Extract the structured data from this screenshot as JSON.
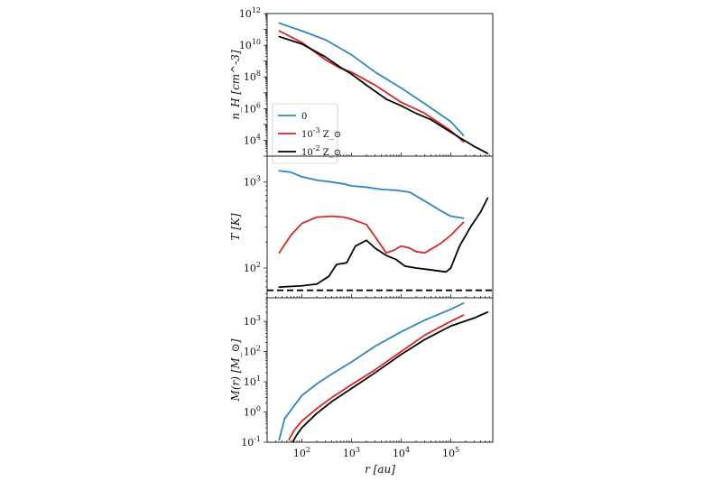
{
  "chart_data": {
    "type": "line",
    "shared_x": {
      "label": "r [au]",
      "scale": "log",
      "lim": [
        20,
        700000
      ],
      "tick_labels": [
        "10^2",
        "10^3",
        "10^4",
        "10^5"
      ]
    },
    "panels": [
      {
        "ylabel": "n_H [cm^-3]",
        "yscale": "log",
        "ylim": [
          1000,
          1000000000000
        ],
        "ytick_labels": [
          "10^4",
          "10^6",
          "10^8",
          "10^10",
          "10^12"
        ],
        "legend": {
          "placement": "lower-left",
          "entries": [
            "0",
            "10^-3 Z_⊙",
            "10^-2 Z_⊙"
          ]
        },
        "series": [
          {
            "name": "0",
            "color": "#2e86c1",
            "x": [
              35,
              100,
              300,
              1000,
              3000,
              10000,
              30000,
              100000,
              180000
            ],
            "y": [
              250000000000,
              80000000000,
              22000000000,
              2500000000,
              200000000,
              20000000,
              2000000,
              150000,
              20000
            ]
          },
          {
            "name": "10^-3 Z_⊙",
            "color": "#d62728",
            "x": [
              35,
              100,
              300,
              600,
              1000,
              3000,
              10000,
              30000,
              100000,
              180000
            ],
            "y": [
              80000000000,
              15000000000,
              1200000000,
              350000000,
              200000000,
              30000000,
              2500000,
              500000,
              40000,
              8000
            ]
          },
          {
            "name": "10^-2 Z_⊙",
            "color": "#000000",
            "x": [
              35,
              100,
              300,
              600,
              1000,
              2000,
              5000,
              10000,
              20000,
              40000,
              80000,
              150000,
              300000,
              550000
            ],
            "y": [
              35000000000,
              12000000000,
              1800000000,
              400000000,
              150000000,
              30000000,
              4000000,
              1500000,
              500000,
              200000,
              50000,
              15000,
              4000,
              1500
            ]
          }
        ]
      },
      {
        "ylabel": "T [K]",
        "yscale": "log",
        "ylim": [
          45,
          2000
        ],
        "ytick_labels": [
          "10^2",
          "10^3"
        ],
        "hline": {
          "value": 55,
          "style": "dashed",
          "color": "#000000"
        },
        "series": [
          {
            "name": "0",
            "color": "#2e86c1",
            "x": [
              35,
              60,
              100,
              200,
              400,
              700,
              1000,
              2000,
              4000,
              8000,
              15000,
              30000,
              60000,
              100000,
              180000
            ],
            "y": [
              1350,
              1300,
              1150,
              1050,
              1000,
              950,
              900,
              870,
              820,
              800,
              760,
              600,
              470,
              400,
              380
            ]
          },
          {
            "name": "10^-3 Z_⊙",
            "color": "#d62728",
            "x": [
              35,
              60,
              100,
              200,
              400,
              700,
              1000,
              2000,
              3000,
              5000,
              7000,
              10000,
              15000,
              20000,
              30000,
              60000,
              100000,
              180000
            ],
            "y": [
              150,
              240,
              330,
              390,
              400,
              390,
              370,
              320,
              230,
              150,
              160,
              180,
              170,
              155,
              150,
              190,
              240,
              340
            ]
          },
          {
            "name": "10^-2 Z_⊙",
            "color": "#000000",
            "x": [
              35,
              100,
              200,
              350,
              500,
              800,
              1200,
              2000,
              3000,
              5000,
              8000,
              12000,
              20000,
              40000,
              80000,
              100000,
              150000,
              250000,
              400000,
              550000
            ],
            "y": [
              60,
              62,
              65,
              80,
              110,
              115,
              180,
              210,
              170,
              140,
              125,
              105,
              100,
              95,
              90,
              100,
              180,
              300,
              450,
              650
            ]
          }
        ]
      },
      {
        "ylabel": "M(r) [M_⊙]",
        "yscale": "log",
        "ylim": [
          0.1,
          6000
        ],
        "ytick_labels": [
          "10^-1",
          "10^0",
          "10^1",
          "10^2",
          "10^3"
        ],
        "series": [
          {
            "name": "0",
            "color": "#2e86c1",
            "x": [
              35,
              45,
              70,
              100,
              200,
              400,
              1000,
              3000,
              10000,
              30000,
              100000,
              180000
            ],
            "y": [
              0.12,
              0.6,
              1.6,
              3.5,
              8.5,
              18,
              45,
              150,
              450,
              1100,
              2500,
              4000
            ]
          },
          {
            "name": "10^-3 Z_⊙",
            "color": "#d62728",
            "x": [
              55,
              70,
              100,
              200,
              400,
              1000,
              3000,
              10000,
              30000,
              100000,
              180000
            ],
            "y": [
              0.12,
              0.25,
              0.5,
              1.3,
              3,
              8,
              25,
              100,
              350,
              1000,
              1600
            ]
          },
          {
            "name": "10^-2 Z_⊙",
            "color": "#000000",
            "x": [
              65,
              80,
              100,
              200,
              400,
              1000,
              3000,
              10000,
              30000,
              100000,
              300000,
              550000
            ],
            "y": [
              0.1,
              0.18,
              0.3,
              0.9,
              2.2,
              6,
              20,
              80,
              250,
              700,
              1300,
              2000
            ]
          }
        ]
      }
    ]
  }
}
